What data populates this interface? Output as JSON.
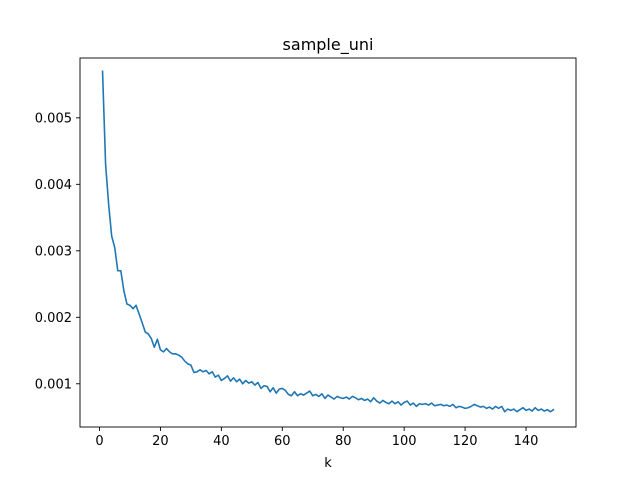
{
  "chart_data": {
    "type": "line",
    "title": "sample_uni",
    "xlabel": "k",
    "ylabel": "",
    "xlim": [
      -6.4,
      156.4
    ],
    "ylim": [
      0.00035,
      0.0059
    ],
    "xticks": [
      0,
      20,
      40,
      60,
      80,
      100,
      120,
      140
    ],
    "yticks": [
      0.001,
      0.002,
      0.003,
      0.004,
      0.005
    ],
    "ytick_labels": [
      "0.001",
      "0.002",
      "0.003",
      "0.004",
      "0.005"
    ],
    "grid": false,
    "series": [
      {
        "color": "#1f77b4",
        "x": [
          1,
          2,
          3,
          4,
          5,
          6,
          7,
          8,
          9,
          10,
          11,
          12,
          13,
          14,
          15,
          16,
          17,
          18,
          19,
          20,
          21,
          22,
          23,
          24,
          25,
          26,
          27,
          28,
          29,
          30,
          31,
          32,
          33,
          34,
          35,
          36,
          37,
          38,
          39,
          40,
          41,
          42,
          43,
          44,
          45,
          46,
          47,
          48,
          49,
          50,
          51,
          52,
          53,
          54,
          55,
          56,
          57,
          58,
          59,
          60,
          61,
          62,
          63,
          64,
          65,
          66,
          67,
          68,
          69,
          70,
          71,
          72,
          73,
          74,
          75,
          76,
          77,
          78,
          79,
          80,
          81,
          82,
          83,
          84,
          85,
          86,
          87,
          88,
          89,
          90,
          91,
          92,
          93,
          94,
          95,
          96,
          97,
          98,
          99,
          100,
          101,
          102,
          103,
          104,
          105,
          106,
          107,
          108,
          109,
          110,
          111,
          112,
          113,
          114,
          115,
          116,
          117,
          118,
          119,
          120,
          121,
          122,
          123,
          124,
          125,
          126,
          127,
          128,
          129,
          130,
          131,
          132,
          133,
          134,
          135,
          136,
          137,
          138,
          139,
          140,
          141,
          142,
          143,
          144,
          145,
          146,
          147,
          148,
          149
        ],
        "y": [
          0.0057,
          0.0043,
          0.0037,
          0.00322,
          0.00305,
          0.0027,
          0.0027,
          0.0024,
          0.0022,
          0.00218,
          0.00213,
          0.00218,
          0.00205,
          0.00192,
          0.00178,
          0.00175,
          0.00168,
          0.00155,
          0.00167,
          0.00151,
          0.00148,
          0.00153,
          0.00148,
          0.00145,
          0.00145,
          0.00143,
          0.0014,
          0.00134,
          0.0013,
          0.00128,
          0.00117,
          0.00118,
          0.00121,
          0.00118,
          0.0012,
          0.00115,
          0.00118,
          0.0011,
          0.00113,
          0.00105,
          0.00108,
          0.00112,
          0.00104,
          0.00109,
          0.00103,
          0.00107,
          0.001,
          0.00105,
          0.00101,
          0.00103,
          0.00098,
          0.00102,
          0.00093,
          0.00097,
          0.00096,
          0.00088,
          0.00094,
          0.00086,
          0.00092,
          0.00093,
          0.0009,
          0.00084,
          0.00082,
          0.00088,
          0.00082,
          0.00085,
          0.00083,
          0.00086,
          0.00089,
          0.00082,
          0.00084,
          0.00081,
          0.00085,
          0.00078,
          0.00083,
          0.0008,
          0.00077,
          0.00081,
          0.00079,
          0.00078,
          0.0008,
          0.00077,
          0.00081,
          0.00079,
          0.00076,
          0.00078,
          0.00075,
          0.00077,
          0.00073,
          0.00079,
          0.00074,
          0.00071,
          0.00075,
          0.00072,
          0.0007,
          0.00074,
          0.0007,
          0.00073,
          0.00068,
          0.00072,
          0.00074,
          0.00068,
          0.00071,
          0.00066,
          0.0007,
          0.00069,
          0.0007,
          0.00068,
          0.00071,
          0.00067,
          0.00068,
          0.00069,
          0.00067,
          0.00068,
          0.00066,
          0.00069,
          0.00064,
          0.00066,
          0.00065,
          0.00063,
          0.00064,
          0.00066,
          0.00069,
          0.00067,
          0.00065,
          0.00066,
          0.00063,
          0.00065,
          0.00062,
          0.00066,
          0.00063,
          0.00066,
          0.00058,
          0.00062,
          0.0006,
          0.00062,
          0.00058,
          0.00061,
          0.00064,
          0.0006,
          0.00062,
          0.00059,
          0.00064,
          0.0006,
          0.00062,
          0.00059,
          0.00061,
          0.00058,
          0.00061
        ]
      }
    ]
  }
}
